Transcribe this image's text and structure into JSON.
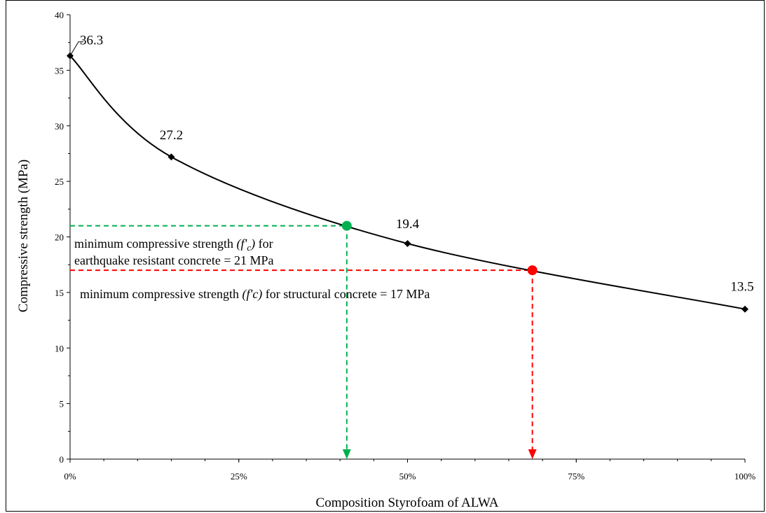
{
  "chart_data": {
    "type": "line",
    "xlabel": "Composition Styrofoam of ALWA",
    "ylabel": "Compressive strength (MPa)",
    "xlim": [
      0,
      1
    ],
    "ylim": [
      0,
      40
    ],
    "x_ticks": [
      {
        "value": 0,
        "label": "0%"
      },
      {
        "value": 0.25,
        "label": "25%"
      },
      {
        "value": 0.5,
        "label": "50%"
      },
      {
        "value": 0.75,
        "label": "75%"
      },
      {
        "value": 1,
        "label": "100%"
      }
    ],
    "y_ticks": [
      0,
      5,
      10,
      15,
      20,
      25,
      30,
      35,
      40
    ],
    "series": [
      {
        "x": [
          0,
          0.15,
          0.5,
          1
        ],
        "y": [
          36.3,
          27.2,
          19.4,
          13.5
        ],
        "labels": [
          "36.3",
          "27.2",
          "19.4",
          "13.5"
        ],
        "marker": "diamond",
        "color": "#000000"
      }
    ],
    "reference_points": [
      {
        "x": 0.41,
        "y": 21,
        "color": "#00b050"
      },
      {
        "x": 0.685,
        "y": 17,
        "color": "#ff0000"
      }
    ],
    "annotations": {
      "green_line1_a": "minimum compressive strength ",
      "green_line1_fc": "(f'",
      "green_line1_sub": "c",
      "green_line1_close": ")",
      "green_line1_b": " for",
      "green_line2": "earthquake resistant concrete = 21 MPa",
      "red_a": "minimum compressive strength ",
      "red_fc": "(f'c)",
      "red_b": " for structural concrete = 17 MPa"
    }
  }
}
